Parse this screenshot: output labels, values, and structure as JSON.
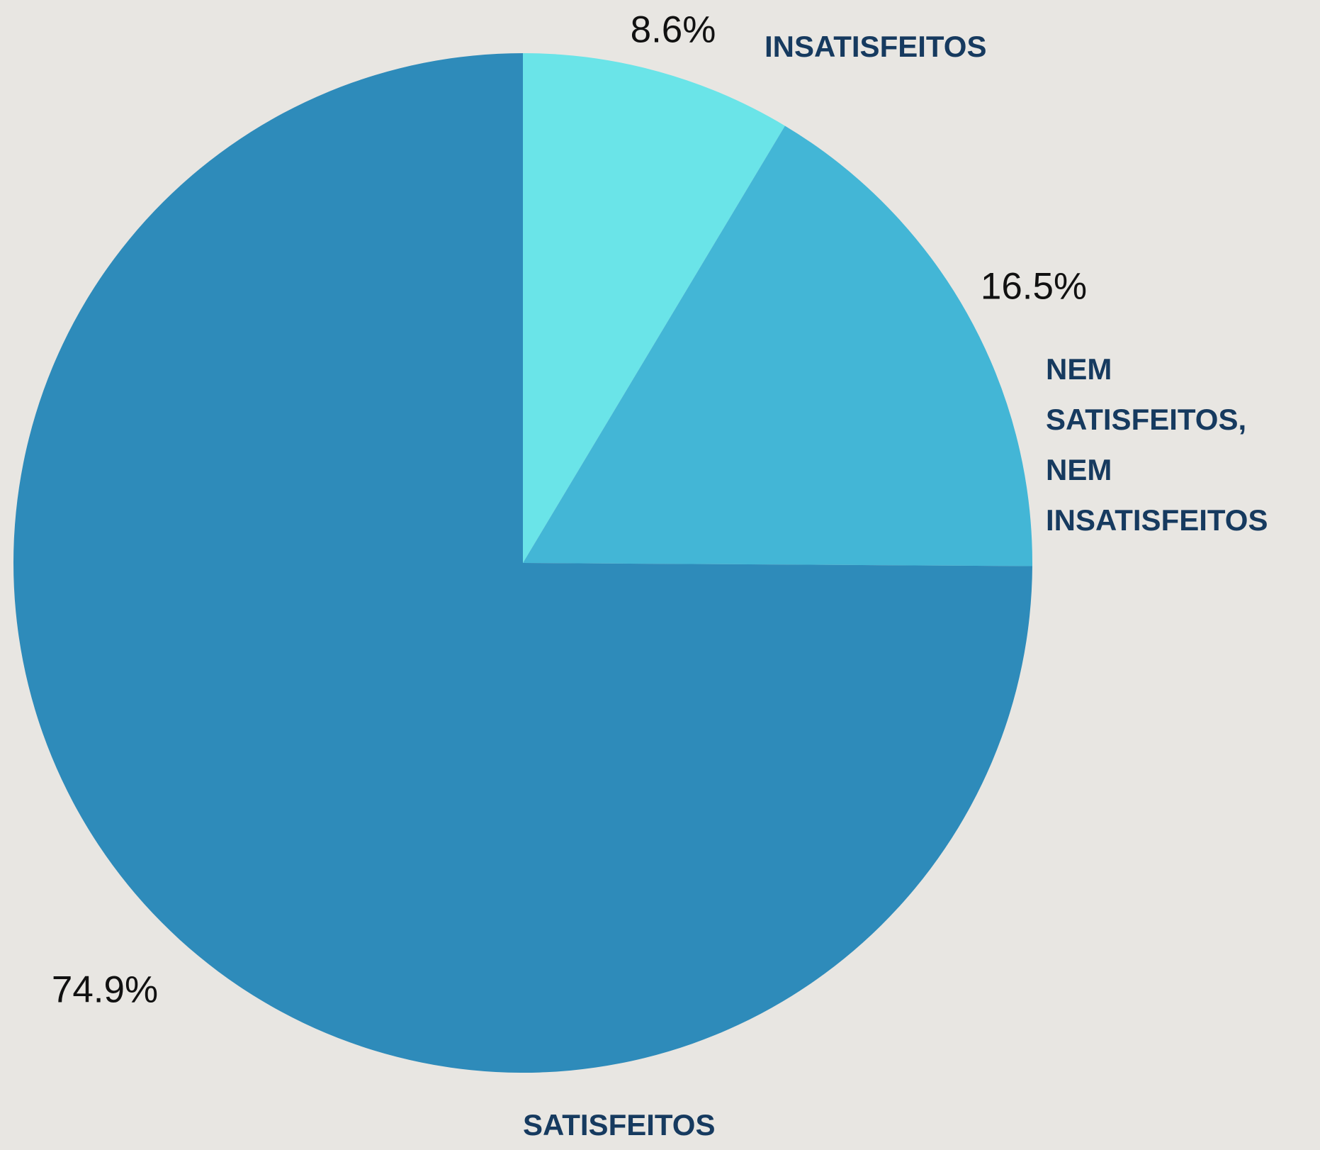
{
  "chart_data": {
    "type": "pie",
    "categories": [
      "INSATISFEITOS",
      "NEM SATISFEITOS, NEM INSATISFEITOS",
      "SATISFEITOS"
    ],
    "values": [
      8.6,
      16.5,
      74.9
    ],
    "value_labels": [
      "8.6%",
      "16.5%",
      "74.9%"
    ],
    "colors": [
      "#6ae4e8",
      "#43b6d6",
      "#2e8bba"
    ]
  }
}
